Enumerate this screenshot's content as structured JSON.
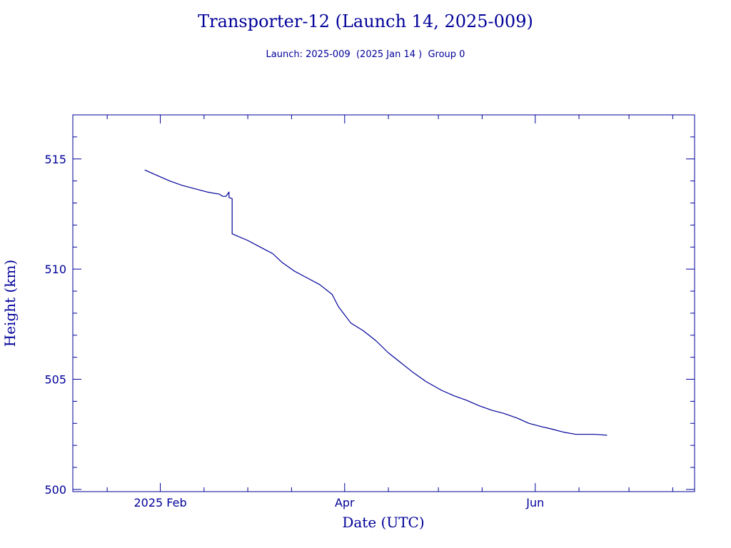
{
  "colors": {
    "ink": "#000099",
    "background": "#ffffff"
  },
  "chart_data": {
    "type": "line",
    "title": "Transporter-12 (Launch 14, 2025-009)",
    "subtitle": "Launch: 2025-009  (2025 Jan 14 )  Group 0",
    "xlabel": "Date (UTC)",
    "ylabel": "Height (km)",
    "xlim": [
      "2025-01-04",
      "2025-07-22"
    ],
    "ylim": [
      499.9,
      517.0
    ],
    "grid": false,
    "x_ticks": [
      {
        "date": "2025-02-01",
        "label": "2025 Feb"
      },
      {
        "date": "2025-04-01",
        "label": "Apr"
      },
      {
        "date": "2025-06-01",
        "label": "Jun"
      }
    ],
    "x_minor_ticks": [
      "2025-01-15",
      "2025-02-15",
      "2025-03-01",
      "2025-03-15",
      "2025-04-15",
      "2025-05-01",
      "2025-05-15",
      "2025-06-15",
      "2025-07-01",
      "2025-07-15"
    ],
    "y_ticks": [
      {
        "value": 500,
        "label": "500"
      },
      {
        "value": 505,
        "label": "505"
      },
      {
        "value": 510,
        "label": "510"
      },
      {
        "value": 515,
        "label": "515"
      }
    ],
    "y_minor_step": 1,
    "series": [
      {
        "x": [
          "2025-01-27",
          "2025-01-31",
          "2025-02-04",
          "2025-02-08",
          "2025-02-12",
          "2025-02-16",
          "2025-02-20",
          "2025-02-21",
          "2025-02-22",
          "2025-02-23",
          "2025-02-23",
          "2025-02-24",
          "2025-02-24",
          "2025-02-24",
          "2025-03-01",
          "2025-03-05",
          "2025-03-09",
          "2025-03-12",
          "2025-03-16",
          "2025-03-20",
          "2025-03-24",
          "2025-03-28",
          "2025-03-30",
          "2025-04-03",
          "2025-04-07",
          "2025-04-11",
          "2025-04-15",
          "2025-04-19",
          "2025-04-23",
          "2025-04-27",
          "2025-05-02",
          "2025-05-06",
          "2025-05-10",
          "2025-05-14",
          "2025-05-18",
          "2025-05-22",
          "2025-05-26",
          "2025-05-30",
          "2025-06-03",
          "2025-06-06",
          "2025-06-10",
          "2025-06-14",
          "2025-06-18",
          "2025-06-20",
          "2025-06-22",
          "2025-06-24"
        ],
        "y": [
          514.5,
          514.25,
          514.0,
          513.8,
          513.65,
          513.5,
          513.4,
          513.3,
          513.3,
          513.5,
          513.25,
          513.2,
          513.2,
          511.6,
          511.3,
          511.0,
          510.7,
          510.3,
          509.9,
          509.6,
          509.3,
          508.85,
          508.3,
          507.55,
          507.2,
          506.75,
          506.2,
          505.75,
          505.3,
          504.9,
          504.5,
          504.25,
          504.05,
          503.8,
          503.6,
          503.45,
          503.25,
          503.0,
          502.85,
          502.75,
          502.6,
          502.5,
          502.5,
          502.5,
          502.48,
          502.46
        ]
      }
    ]
  }
}
